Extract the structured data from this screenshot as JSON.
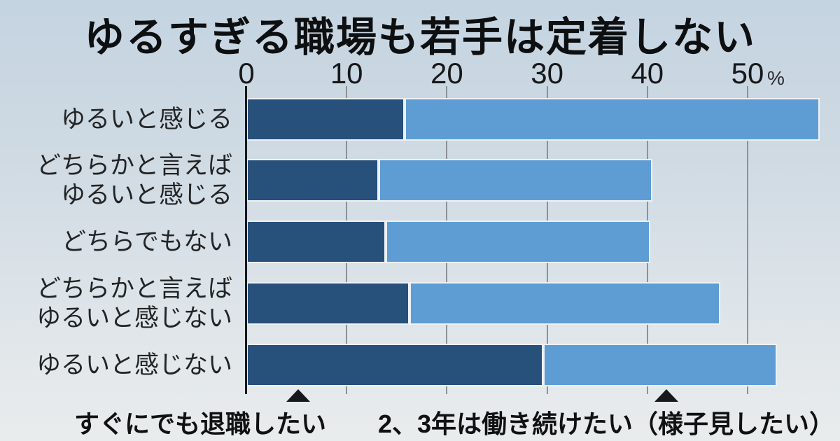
{
  "page": {
    "background_top": "#c4d4e1",
    "background_bottom": "#e9eced"
  },
  "chart_data": {
    "type": "bar",
    "orientation": "horizontal",
    "stacked": true,
    "title": "ゆるすぎる職場も若手は定着しない",
    "unit": "%",
    "categories": [
      "ゆるいと感じる",
      "どちらかと言えば\nゆるいと感じる",
      "どちらでもない",
      "どちらかと言えば\nゆるいと感じない",
      "ゆるいと感じない"
    ],
    "series": [
      {
        "name": "すぐにでも退職したい",
        "color": "#27507b",
        "values": [
          15.8,
          13.2,
          13.9,
          16.3,
          29.6
        ]
      },
      {
        "name": "2、3年は働き続けたい（様子見したい）",
        "color": "#5e9dd4",
        "values": [
          41.4,
          27.3,
          26.4,
          31.0,
          23.3
        ]
      }
    ],
    "x_ticks": [
      0,
      10,
      20,
      30,
      40,
      50
    ],
    "xlim": [
      0,
      59.2
    ],
    "grid": true,
    "grid_color": "#8d9196",
    "axis_color": "#17191c",
    "legend_position": "bottom",
    "legend": [
      {
        "marker": "triangle-up",
        "label": "すぐにでも退職したい"
      },
      {
        "marker": "triangle-up",
        "label": "2、3年は働き続けたい（様子見したい）"
      }
    ],
    "annotations": [
      {
        "marker": "triangle-up",
        "series_index": 0,
        "x_value": 5.2
      },
      {
        "marker": "triangle-up",
        "series_index": 1,
        "x_value": 41.9
      }
    ]
  }
}
